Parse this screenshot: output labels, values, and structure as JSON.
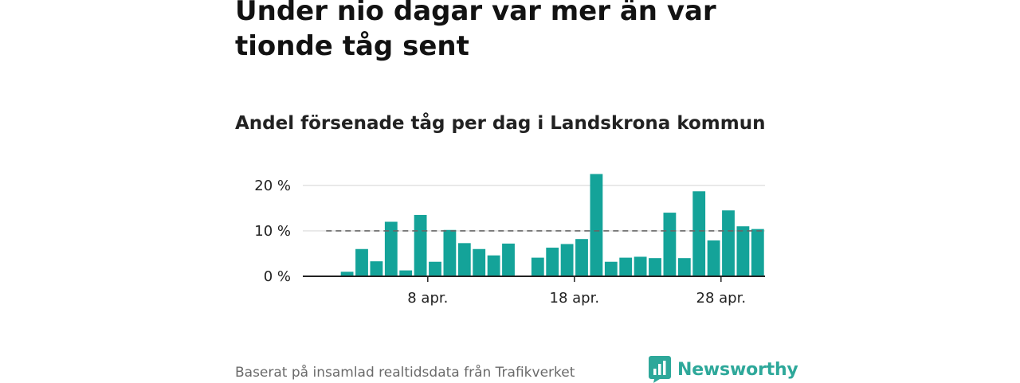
{
  "headline": "Under nio dagar var mer än var tionde tåg sent",
  "chart_data": {
    "type": "bar",
    "title": "Andel försenade tåg per dag i Landskrona kommun",
    "xlabel": "",
    "ylabel": "",
    "x_start": "2024-04-01",
    "x_end": "2024-04-30",
    "x_ticks": [
      {
        "date": "2024-04-08",
        "label": "8 apr."
      },
      {
        "date": "2024-04-18",
        "label": "18 apr."
      },
      {
        "date": "2024-04-28",
        "label": "28 apr."
      }
    ],
    "y_ticks": [
      {
        "value": 0,
        "label": "0 %"
      },
      {
        "value": 10,
        "label": "10 %"
      },
      {
        "value": 20,
        "label": "20 %"
      }
    ],
    "ylim": [
      0,
      24
    ],
    "reference_line": 10,
    "bar_color": "#14a399",
    "grid": true,
    "categories": [
      "2024-04-02",
      "2024-04-03",
      "2024-04-04",
      "2024-04-05",
      "2024-04-06",
      "2024-04-07",
      "2024-04-08",
      "2024-04-09",
      "2024-04-10",
      "2024-04-11",
      "2024-04-12",
      "2024-04-13",
      "2024-04-15",
      "2024-04-16",
      "2024-04-17",
      "2024-04-18",
      "2024-04-19",
      "2024-04-20",
      "2024-04-21",
      "2024-04-22",
      "2024-04-23",
      "2024-04-24",
      "2024-04-25",
      "2024-04-26",
      "2024-04-27",
      "2024-04-28",
      "2024-04-29",
      "2024-04-30"
    ],
    "values": [
      1.0,
      6.0,
      3.3,
      12.0,
      1.3,
      13.5,
      3.2,
      10.2,
      7.3,
      6.0,
      4.6,
      7.2,
      4.1,
      6.3,
      7.1,
      8.2,
      22.5,
      3.2,
      4.1,
      4.3,
      4.0,
      14.0,
      4.0,
      18.7,
      7.9,
      14.5,
      11.0,
      10.4
    ]
  },
  "footer": {
    "source": "Baserat på insamlad realtidsdata från Trafikverket",
    "brand": "Newsworthy"
  }
}
